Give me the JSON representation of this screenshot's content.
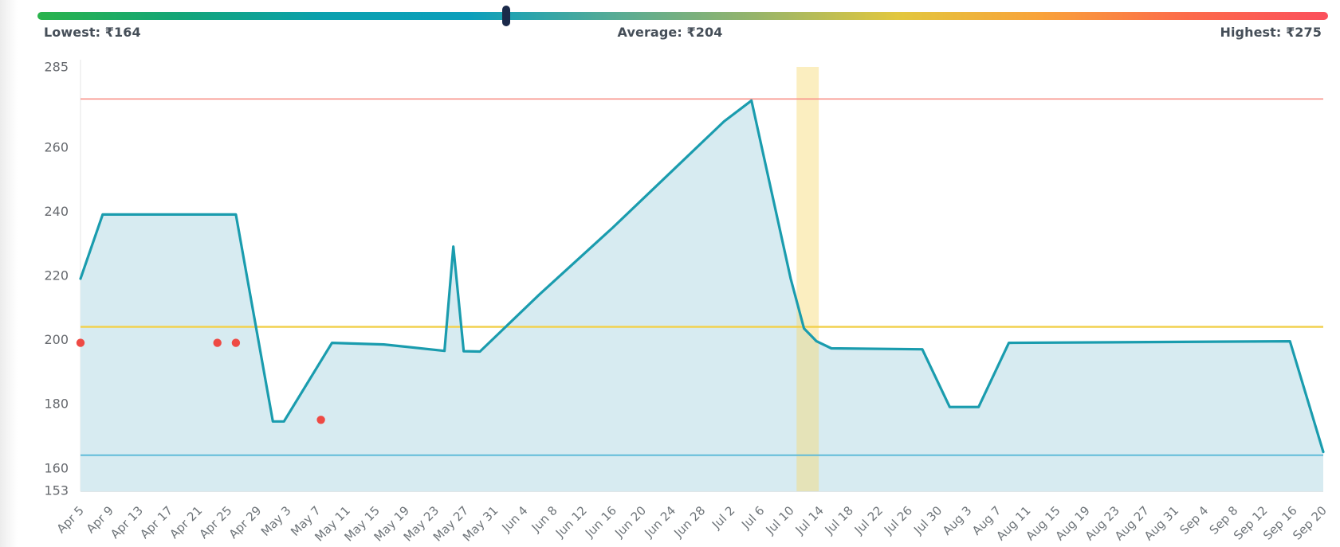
{
  "summary": {
    "lowest": "Lowest: ₹164",
    "average": "Average: ₹204",
    "highest": "Highest: ₹275"
  },
  "range_bar": {
    "gradient_colors": [
      "#2ab34c",
      "#13a578",
      "#0aa0ae",
      "#0b9fbc",
      "#55ab96",
      "#96b46a",
      "#e2c73e",
      "#f9a23a",
      "#fc6b4a",
      "#fb4f5c"
    ],
    "indicator_color": "#1b2a4a",
    "indicator_pct": 36.3
  },
  "chart_data": {
    "type": "area",
    "title": "",
    "xlabel": "",
    "ylabel": "",
    "ylim": [
      153,
      285
    ],
    "y_ticks": [
      285,
      260,
      240,
      220,
      200,
      180,
      160,
      153
    ],
    "x_tick_interval_days": 4,
    "x_total_days": 168,
    "x_tick_labels": [
      "Apr 5",
      "Apr 9",
      "Apr 13",
      "Apr 17",
      "Apr 21",
      "Apr 25",
      "Apr 29",
      "May 3",
      "May 7",
      "May 11",
      "May 15",
      "May 19",
      "May 23",
      "May 27",
      "May 31",
      "Jun 4",
      "Jun 8",
      "Jun 12",
      "Jun 16",
      "Jun 20",
      "Jun 24",
      "Jun 28",
      "Jul 2",
      "Jul 6",
      "Jul 10",
      "Jul 14",
      "Jul 18",
      "Jul 22",
      "Jul 26",
      "Jul 30",
      "Aug 3",
      "Aug 7",
      "Aug 11",
      "Aug 15",
      "Aug 19",
      "Aug 23",
      "Aug 27",
      "Aug 31",
      "Sep 4",
      "Sep 8",
      "Sep 12",
      "Sep 16",
      "Sep 20"
    ],
    "grid": "off",
    "legend": "none",
    "series": [
      {
        "name": "price",
        "color": "#1a9cae",
        "fill_color": "#d7ebf1",
        "points_day_value": [
          [
            0,
            219
          ],
          [
            3,
            239
          ],
          [
            21,
            239
          ],
          [
            26,
            174.5
          ],
          [
            27.5,
            174.5
          ],
          [
            34,
            199
          ],
          [
            41,
            198.5
          ],
          [
            49.2,
            196.5
          ],
          [
            50.4,
            229
          ],
          [
            51.8,
            196.4
          ],
          [
            54,
            196.3
          ],
          [
            62,
            214
          ],
          [
            72,
            235
          ],
          [
            82,
            257
          ],
          [
            87,
            268
          ],
          [
            90.7,
            274.5
          ],
          [
            96,
            219
          ],
          [
            97.8,
            203.5
          ],
          [
            99.5,
            199.5
          ],
          [
            101.5,
            197.3
          ],
          [
            113.8,
            197
          ],
          [
            117.5,
            179
          ],
          [
            121.4,
            179
          ],
          [
            125.5,
            199
          ],
          [
            163.5,
            199.5
          ],
          [
            168,
            165
          ]
        ]
      }
    ],
    "deal_dots": {
      "color": "#ee4a44",
      "points_day_value": [
        [
          0,
          199
        ],
        [
          18.5,
          199
        ],
        [
          21,
          199
        ],
        [
          32.5,
          175
        ]
      ]
    },
    "reference_lines": [
      {
        "name": "highest",
        "value": 275,
        "color": "#f8938b"
      },
      {
        "name": "average",
        "value": 204,
        "color": "#f2d14f"
      },
      {
        "name": "lowest",
        "value": 164,
        "color": "#57b8d8"
      }
    ],
    "highlight_band": {
      "from_day": 96.8,
      "to_day": 99.8,
      "color": "rgba(246,217,116,0.45)"
    }
  }
}
